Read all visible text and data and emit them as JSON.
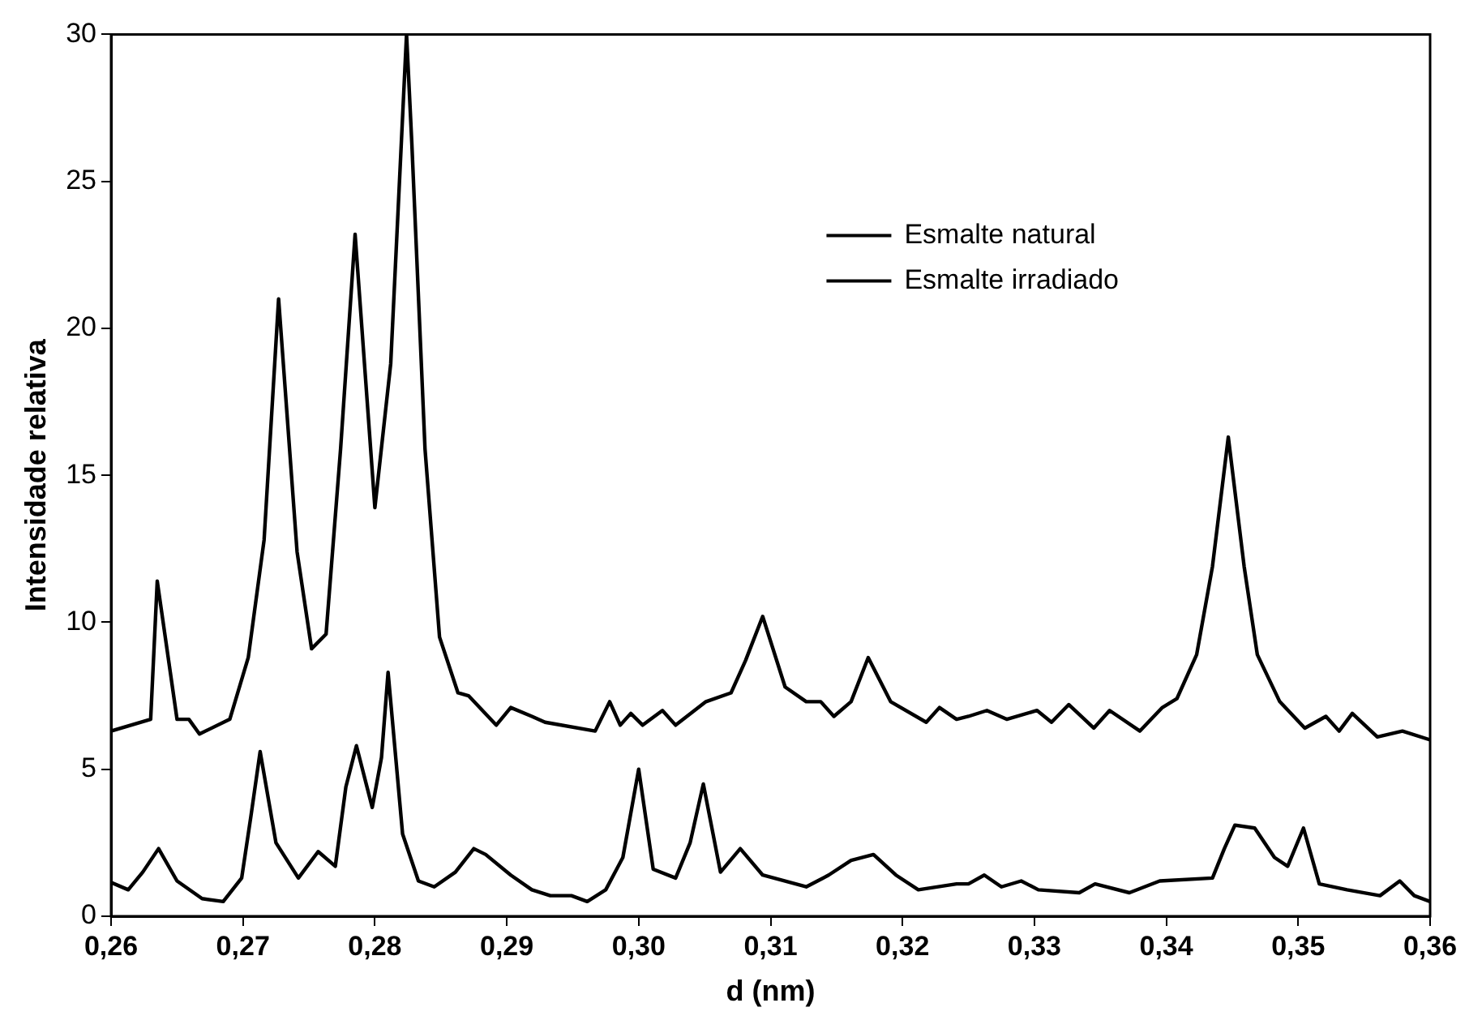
{
  "chart_data": {
    "type": "line",
    "xlabel": "d (nm)",
    "ylabel": "Intensidade relativa",
    "xlim": [
      0.26,
      0.36
    ],
    "ylim": [
      0,
      30
    ],
    "xticks": [
      {
        "value": 0.26,
        "label": "0,26"
      },
      {
        "value": 0.27,
        "label": "0,27"
      },
      {
        "value": 0.28,
        "label": "0,28"
      },
      {
        "value": 0.29,
        "label": "0,29"
      },
      {
        "value": 0.3,
        "label": "0,30"
      },
      {
        "value": 0.31,
        "label": "0,31"
      },
      {
        "value": 0.32,
        "label": "0,32"
      },
      {
        "value": 0.33,
        "label": "0,33"
      },
      {
        "value": 0.34,
        "label": "0,34"
      },
      {
        "value": 0.35,
        "label": "0,35"
      },
      {
        "value": 0.36,
        "label": "0,36"
      }
    ],
    "yticks": [
      0,
      5,
      10,
      15,
      20,
      25,
      30
    ],
    "grid": false,
    "legend": "top right",
    "marker": "none",
    "line_style": "solid",
    "series": [
      {
        "name": "Esmalte natural",
        "color": "#000000",
        "x": [
          0.26,
          0.263,
          0.2635,
          0.265,
          0.2659,
          0.2667,
          0.269,
          0.2704,
          0.2716,
          0.2727,
          0.2741,
          0.2752,
          0.2763,
          0.2774,
          0.2785,
          0.28,
          0.2812,
          0.2824,
          0.2828,
          0.2838,
          0.2849,
          0.2863,
          0.2871,
          0.2892,
          0.2903,
          0.2919,
          0.2929,
          0.2967,
          0.2978,
          0.2986,
          0.2994,
          0.3003,
          0.3018,
          0.3028,
          0.3051,
          0.307,
          0.3081,
          0.3094,
          0.3111,
          0.3127,
          0.3138,
          0.3148,
          0.3161,
          0.3174,
          0.3191,
          0.3218,
          0.3228,
          0.3241,
          0.325,
          0.3264,
          0.3279,
          0.3302,
          0.3313,
          0.3326,
          0.3345,
          0.3357,
          0.338,
          0.3397,
          0.3408,
          0.3423,
          0.3435,
          0.3447,
          0.3459,
          0.3469,
          0.3486,
          0.3505,
          0.3521,
          0.3531,
          0.3541,
          0.356,
          0.3579,
          0.36
        ],
        "values": [
          6.3,
          6.7,
          11.4,
          6.7,
          6.7,
          6.2,
          6.7,
          8.8,
          12.8,
          21.0,
          12.4,
          9.1,
          9.6,
          15.9,
          23.2,
          13.9,
          18.8,
          30,
          26.3,
          15.9,
          9.5,
          7.6,
          7.5,
          6.5,
          7.1,
          6.8,
          6.6,
          6.3,
          7.3,
          6.5,
          6.9,
          6.5,
          7.0,
          6.5,
          7.3,
          7.6,
          8.7,
          10.2,
          7.8,
          7.3,
          7.3,
          6.8,
          7.3,
          8.8,
          7.3,
          6.6,
          7.1,
          6.7,
          6.8,
          7.0,
          6.7,
          7.0,
          6.6,
          7.2,
          6.4,
          7.0,
          6.3,
          7.1,
          7.4,
          8.9,
          11.9,
          16.3,
          11.9,
          8.9,
          7.3,
          6.4,
          6.8,
          6.3,
          6.9,
          6.1,
          6.3,
          6.0
        ]
      },
      {
        "name": "Esmalte irradiado",
        "color": "#000000",
        "x": [
          0.26,
          0.2613,
          0.2624,
          0.2636,
          0.265,
          0.2669,
          0.2685,
          0.2699,
          0.2706,
          0.2713,
          0.2725,
          0.2742,
          0.2757,
          0.277,
          0.2778,
          0.2786,
          0.2798,
          0.2805,
          0.281,
          0.2821,
          0.2833,
          0.2845,
          0.2861,
          0.2875,
          0.2884,
          0.2903,
          0.2919,
          0.2933,
          0.2949,
          0.2961,
          0.2975,
          0.2988,
          0.3,
          0.3011,
          0.3028,
          0.3039,
          0.3049,
          0.3062,
          0.3077,
          0.3094,
          0.3127,
          0.3144,
          0.3161,
          0.3178,
          0.3195,
          0.3212,
          0.3241,
          0.325,
          0.3262,
          0.3275,
          0.329,
          0.3303,
          0.3334,
          0.3346,
          0.3372,
          0.3395,
          0.3435,
          0.3444,
          0.3452,
          0.3467,
          0.3482,
          0.3492,
          0.3504,
          0.3516,
          0.3537,
          0.3562,
          0.3577,
          0.3588,
          0.36
        ],
        "values": [
          1.15,
          0.9,
          1.5,
          2.3,
          1.2,
          0.6,
          0.5,
          1.3,
          3.4,
          5.6,
          2.5,
          1.3,
          2.2,
          1.7,
          4.4,
          5.8,
          3.7,
          5.4,
          8.3,
          2.8,
          1.2,
          1.0,
          1.5,
          2.3,
          2.1,
          1.4,
          0.9,
          0.7,
          0.7,
          0.5,
          0.9,
          2.0,
          5.0,
          1.6,
          1.3,
          2.5,
          4.5,
          1.5,
          2.3,
          1.4,
          1.0,
          1.4,
          1.9,
          2.1,
          1.4,
          0.9,
          1.1,
          1.1,
          1.4,
          1.0,
          1.2,
          0.9,
          0.8,
          1.1,
          0.8,
          1.2,
          1.3,
          2.3,
          3.1,
          3.0,
          2.0,
          1.7,
          3.0,
          1.1,
          0.9,
          0.7,
          1.2,
          0.7,
          0.5
        ]
      }
    ]
  }
}
